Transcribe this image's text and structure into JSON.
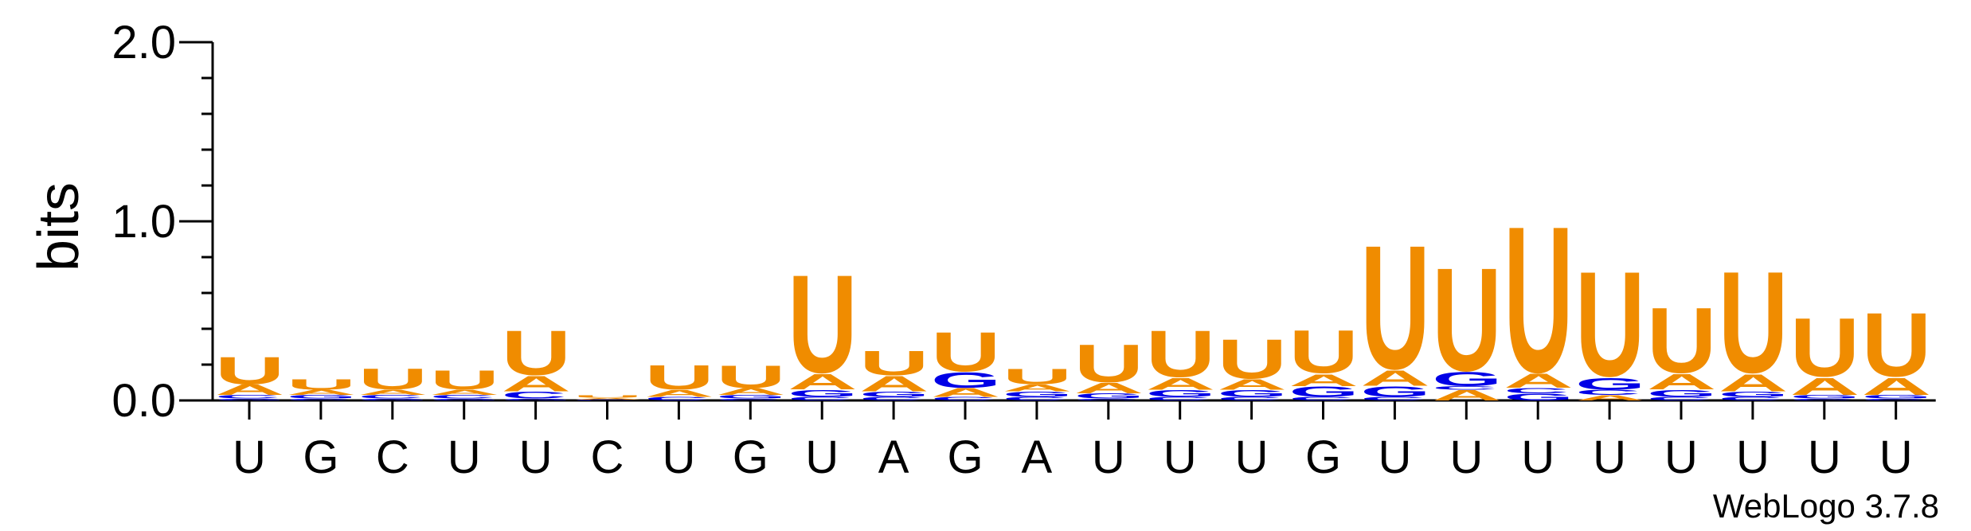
{
  "chart_data": {
    "type": "sequence-logo",
    "ylabel": "bits",
    "ylim": [
      0,
      2.0
    ],
    "yticks": [
      "0.0",
      "1.0",
      "2.0"
    ],
    "credit": "WebLogo 3.7.8",
    "colors": {
      "U": "#f08c00",
      "A": "#f08c00",
      "G": "#0000e6",
      "C": "#0000e6"
    },
    "positions": [
      {
        "label": "U",
        "stack": [
          [
            "G",
            0.01
          ],
          [
            "C",
            0.02
          ],
          [
            "A",
            0.06
          ],
          [
            "U",
            0.16
          ]
        ]
      },
      {
        "label": "G",
        "stack": [
          [
            "C",
            0.01
          ],
          [
            "G",
            0.02
          ],
          [
            "A",
            0.03
          ],
          [
            "U",
            0.06
          ]
        ]
      },
      {
        "label": "C",
        "stack": [
          [
            "G",
            0.01
          ],
          [
            "C",
            0.02
          ],
          [
            "A",
            0.03
          ],
          [
            "U",
            0.12
          ]
        ]
      },
      {
        "label": "U",
        "stack": [
          [
            "G",
            0.01
          ],
          [
            "C",
            0.02
          ],
          [
            "A",
            0.03
          ],
          [
            "U",
            0.11
          ]
        ]
      },
      {
        "label": "U",
        "stack": [
          [
            "G",
            0.01
          ],
          [
            "C",
            0.04
          ],
          [
            "A",
            0.09
          ],
          [
            "U",
            0.26
          ]
        ]
      },
      {
        "label": "C",
        "stack": [
          [
            "C",
            0.005
          ],
          [
            "A",
            0.01
          ],
          [
            "U",
            0.015
          ]
        ]
      },
      {
        "label": "U",
        "stack": [
          [
            "C",
            0.02
          ],
          [
            "A",
            0.04
          ],
          [
            "U",
            0.14
          ]
        ]
      },
      {
        "label": "G",
        "stack": [
          [
            "C",
            0.01
          ],
          [
            "G",
            0.02
          ],
          [
            "A",
            0.04
          ],
          [
            "U",
            0.13
          ]
        ]
      },
      {
        "label": "U",
        "stack": [
          [
            "C",
            0.02
          ],
          [
            "G",
            0.04
          ],
          [
            "A",
            0.09
          ],
          [
            "U",
            0.57
          ]
        ]
      },
      {
        "label": "A",
        "stack": [
          [
            "C",
            0.02
          ],
          [
            "G",
            0.03
          ],
          [
            "A",
            0.09
          ],
          [
            "U",
            0.14
          ]
        ]
      },
      {
        "label": "G",
        "stack": [
          [
            "C",
            0.02
          ],
          [
            "A",
            0.05
          ],
          [
            "G",
            0.09
          ],
          [
            "U",
            0.23
          ]
        ]
      },
      {
        "label": "A",
        "stack": [
          [
            "C",
            0.02
          ],
          [
            "G",
            0.03
          ],
          [
            "A",
            0.04
          ],
          [
            "U",
            0.09
          ]
        ]
      },
      {
        "label": "U",
        "stack": [
          [
            "C",
            0.01
          ],
          [
            "G",
            0.03
          ],
          [
            "A",
            0.06
          ],
          [
            "U",
            0.22
          ]
        ]
      },
      {
        "label": "U",
        "stack": [
          [
            "C",
            0.02
          ],
          [
            "G",
            0.04
          ],
          [
            "A",
            0.07
          ],
          [
            "U",
            0.27
          ]
        ]
      },
      {
        "label": "U",
        "stack": [
          [
            "C",
            0.02
          ],
          [
            "G",
            0.04
          ],
          [
            "A",
            0.06
          ],
          [
            "U",
            0.23
          ]
        ]
      },
      {
        "label": "G",
        "stack": [
          [
            "C",
            0.02
          ],
          [
            "G",
            0.06
          ],
          [
            "A",
            0.07
          ],
          [
            "U",
            0.25
          ]
        ]
      },
      {
        "label": "U",
        "stack": [
          [
            "C",
            0.02
          ],
          [
            "G",
            0.06
          ],
          [
            "A",
            0.09
          ],
          [
            "U",
            0.72
          ]
        ]
      },
      {
        "label": "U",
        "stack": [
          [
            "A",
            0.06
          ],
          [
            "C",
            0.02
          ],
          [
            "G",
            0.08
          ],
          [
            "U",
            0.6
          ]
        ]
      },
      {
        "label": "U",
        "stack": [
          [
            "G",
            0.04
          ],
          [
            "C",
            0.03
          ],
          [
            "A",
            0.08
          ],
          [
            "U",
            0.85
          ]
        ]
      },
      {
        "label": "U",
        "stack": [
          [
            "A",
            0.03
          ],
          [
            "C",
            0.03
          ],
          [
            "G",
            0.07
          ],
          [
            "U",
            0.61
          ]
        ]
      },
      {
        "label": "U",
        "stack": [
          [
            "C",
            0.02
          ],
          [
            "G",
            0.04
          ],
          [
            "A",
            0.09
          ],
          [
            "U",
            0.38
          ]
        ]
      },
      {
        "label": "U",
        "stack": [
          [
            "C",
            0.02
          ],
          [
            "G",
            0.03
          ],
          [
            "A",
            0.1
          ],
          [
            "U",
            0.59
          ]
        ]
      },
      {
        "label": "U",
        "stack": [
          [
            "C",
            0.01
          ],
          [
            "G",
            0.02
          ],
          [
            "A",
            0.1
          ],
          [
            "U",
            0.34
          ]
        ]
      },
      {
        "label": "U",
        "stack": [
          [
            "C",
            0.01
          ],
          [
            "G",
            0.02
          ],
          [
            "A",
            0.1
          ],
          [
            "U",
            0.37
          ]
        ]
      }
    ]
  }
}
